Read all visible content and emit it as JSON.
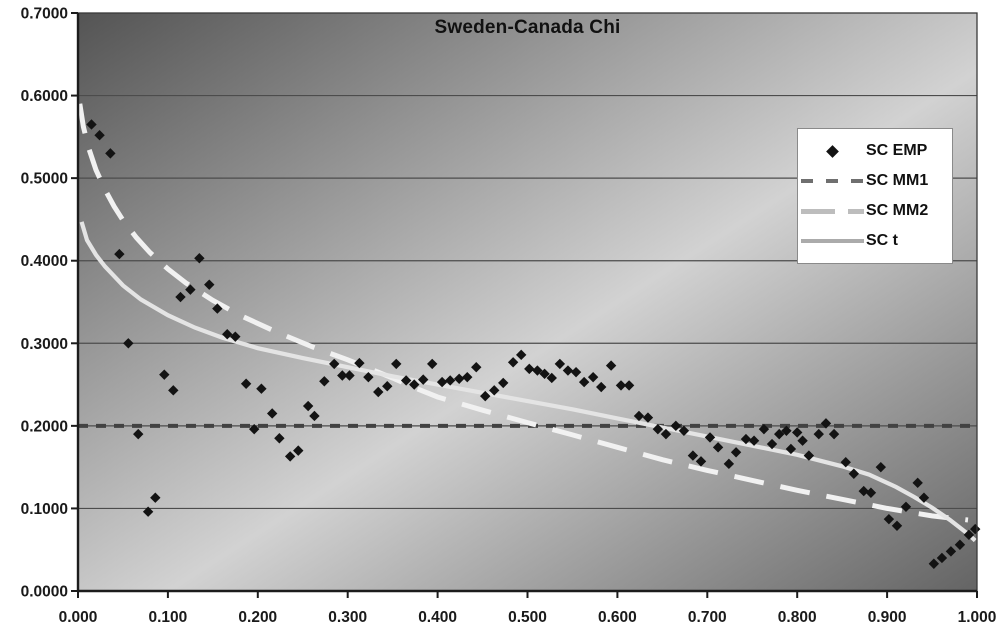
{
  "page": {
    "background": "#ffffff"
  },
  "colors": {
    "emp": "#131313",
    "mm1": "#424242",
    "mm2": "#f1f1f1",
    "t": "#e4e4e4",
    "legend_mm1": "#6f6f6f",
    "legend_mm2": "#bdbdbd",
    "legend_t": "#ababab",
    "grid": "#4c4c4c",
    "axis": "#1c1c1c",
    "border": "#3a3a3a",
    "text": "#1a1a1a",
    "plot_corner_dark": "#545454",
    "plot_mid_light": "#d2d2d2",
    "plot_corner_dark2": "#646464",
    "legend_bg": "#ffffff",
    "legend_border": "#8a8a8a"
  },
  "chart_data": {
    "type": "scatter",
    "title": "Sweden-Canada Chi",
    "xlabel": "",
    "ylabel": "",
    "xlim": [
      0,
      1
    ],
    "ylim": [
      0,
      0.7
    ],
    "x_ticks": [
      "0.000",
      "0.100",
      "0.200",
      "0.300",
      "0.400",
      "0.500",
      "0.600",
      "0.700",
      "0.800",
      "0.900",
      "1.000"
    ],
    "y_ticks": [
      "0.0000",
      "0.1000",
      "0.2000",
      "0.3000",
      "0.4000",
      "0.5000",
      "0.6000",
      "0.7000"
    ],
    "grid": true,
    "legend_position": "upper-right",
    "series": [
      {
        "name": "SC EMP",
        "type": "scatter",
        "marker": "diamond",
        "color_key": "emp",
        "points": [
          [
            0.015,
            0.565
          ],
          [
            0.024,
            0.552
          ],
          [
            0.036,
            0.53
          ],
          [
            0.046,
            0.408
          ],
          [
            0.056,
            0.3
          ],
          [
            0.067,
            0.19
          ],
          [
            0.078,
            0.096
          ],
          [
            0.086,
            0.113
          ],
          [
            0.096,
            0.262
          ],
          [
            0.106,
            0.243
          ],
          [
            0.114,
            0.356
          ],
          [
            0.125,
            0.365
          ],
          [
            0.135,
            0.403
          ],
          [
            0.146,
            0.371
          ],
          [
            0.155,
            0.342
          ],
          [
            0.166,
            0.311
          ],
          [
            0.175,
            0.308
          ],
          [
            0.187,
            0.251
          ],
          [
            0.196,
            0.196
          ],
          [
            0.204,
            0.245
          ],
          [
            0.216,
            0.215
          ],
          [
            0.224,
            0.185
          ],
          [
            0.236,
            0.163
          ],
          [
            0.245,
            0.17
          ],
          [
            0.256,
            0.224
          ],
          [
            0.263,
            0.212
          ],
          [
            0.274,
            0.254
          ],
          [
            0.285,
            0.275
          ],
          [
            0.294,
            0.261
          ],
          [
            0.302,
            0.261
          ],
          [
            0.313,
            0.276
          ],
          [
            0.323,
            0.259
          ],
          [
            0.334,
            0.241
          ],
          [
            0.344,
            0.248
          ],
          [
            0.354,
            0.275
          ],
          [
            0.365,
            0.255
          ],
          [
            0.374,
            0.25
          ],
          [
            0.384,
            0.256
          ],
          [
            0.394,
            0.275
          ],
          [
            0.405,
            0.253
          ],
          [
            0.414,
            0.255
          ],
          [
            0.424,
            0.257
          ],
          [
            0.433,
            0.259
          ],
          [
            0.443,
            0.271
          ],
          [
            0.453,
            0.236
          ],
          [
            0.463,
            0.243
          ],
          [
            0.473,
            0.252
          ],
          [
            0.484,
            0.277
          ],
          [
            0.493,
            0.286
          ],
          [
            0.502,
            0.269
          ],
          [
            0.511,
            0.267
          ],
          [
            0.519,
            0.263
          ],
          [
            0.527,
            0.258
          ],
          [
            0.536,
            0.275
          ],
          [
            0.545,
            0.267
          ],
          [
            0.554,
            0.265
          ],
          [
            0.563,
            0.253
          ],
          [
            0.573,
            0.259
          ],
          [
            0.582,
            0.247
          ],
          [
            0.593,
            0.273
          ],
          [
            0.604,
            0.249
          ],
          [
            0.613,
            0.249
          ],
          [
            0.624,
            0.212
          ],
          [
            0.634,
            0.21
          ],
          [
            0.645,
            0.196
          ],
          [
            0.654,
            0.19
          ],
          [
            0.665,
            0.2
          ],
          [
            0.674,
            0.194
          ],
          [
            0.684,
            0.164
          ],
          [
            0.693,
            0.157
          ],
          [
            0.703,
            0.186
          ],
          [
            0.712,
            0.174
          ],
          [
            0.724,
            0.154
          ],
          [
            0.732,
            0.168
          ],
          [
            0.743,
            0.184
          ],
          [
            0.752,
            0.182
          ],
          [
            0.763,
            0.196
          ],
          [
            0.772,
            0.178
          ],
          [
            0.78,
            0.19
          ],
          [
            0.788,
            0.194
          ],
          [
            0.793,
            0.172
          ],
          [
            0.8,
            0.192
          ],
          [
            0.806,
            0.182
          ],
          [
            0.813,
            0.164
          ],
          [
            0.824,
            0.19
          ],
          [
            0.832,
            0.203
          ],
          [
            0.841,
            0.19
          ],
          [
            0.854,
            0.156
          ],
          [
            0.863,
            0.142
          ],
          [
            0.874,
            0.121
          ],
          [
            0.882,
            0.119
          ],
          [
            0.893,
            0.15
          ],
          [
            0.902,
            0.087
          ],
          [
            0.911,
            0.079
          ],
          [
            0.921,
            0.102
          ],
          [
            0.934,
            0.131
          ],
          [
            0.941,
            0.113
          ],
          [
            0.952,
            0.033
          ],
          [
            0.961,
            0.04
          ],
          [
            0.971,
            0.048
          ],
          [
            0.981,
            0.056
          ],
          [
            0.991,
            0.068
          ],
          [
            0.998,
            0.075
          ]
        ]
      },
      {
        "name": "SC MM1",
        "type": "line",
        "style": "dash-short",
        "color_key": "mm1",
        "points": [
          [
            0,
            0.2
          ],
          [
            1,
            0.2
          ]
        ]
      },
      {
        "name": "SC MM2",
        "type": "line",
        "style": "dash-long",
        "color_key": "mm2",
        "points": [
          [
            0.002,
            0.59
          ],
          [
            0.006,
            0.562
          ],
          [
            0.012,
            0.536
          ],
          [
            0.02,
            0.51
          ],
          [
            0.03,
            0.486
          ],
          [
            0.04,
            0.466
          ],
          [
            0.05,
            0.449
          ],
          [
            0.065,
            0.428
          ],
          [
            0.08,
            0.41
          ],
          [
            0.1,
            0.39
          ],
          [
            0.12,
            0.373
          ],
          [
            0.15,
            0.352
          ],
          [
            0.18,
            0.334
          ],
          [
            0.22,
            0.314
          ],
          [
            0.26,
            0.296
          ],
          [
            0.3,
            0.28
          ],
          [
            0.35,
            0.258
          ],
          [
            0.375,
            0.246
          ],
          [
            0.4,
            0.235
          ],
          [
            0.45,
            0.219
          ],
          [
            0.5,
            0.204
          ],
          [
            0.55,
            0.189
          ],
          [
            0.6,
            0.174
          ],
          [
            0.65,
            0.159
          ],
          [
            0.7,
            0.146
          ],
          [
            0.75,
            0.134
          ],
          [
            0.8,
            0.122
          ],
          [
            0.85,
            0.111
          ],
          [
            0.9,
            0.1
          ],
          [
            0.95,
            0.091
          ],
          [
            0.99,
            0.086
          ]
        ]
      },
      {
        "name": "SC t",
        "type": "line",
        "style": "solid",
        "color_key": "t",
        "points": [
          [
            0.004,
            0.447
          ],
          [
            0.01,
            0.425
          ],
          [
            0.02,
            0.407
          ],
          [
            0.03,
            0.393
          ],
          [
            0.05,
            0.37
          ],
          [
            0.07,
            0.353
          ],
          [
            0.1,
            0.334
          ],
          [
            0.13,
            0.319
          ],
          [
            0.16,
            0.307
          ],
          [
            0.2,
            0.294
          ],
          [
            0.25,
            0.282
          ],
          [
            0.3,
            0.271
          ],
          [
            0.35,
            0.26
          ],
          [
            0.4,
            0.25
          ],
          [
            0.45,
            0.24
          ],
          [
            0.5,
            0.23
          ],
          [
            0.55,
            0.22
          ],
          [
            0.6,
            0.209
          ],
          [
            0.65,
            0.198
          ],
          [
            0.7,
            0.187
          ],
          [
            0.75,
            0.176
          ],
          [
            0.8,
            0.165
          ],
          [
            0.85,
            0.151
          ],
          [
            0.88,
            0.141
          ],
          [
            0.91,
            0.126
          ],
          [
            0.93,
            0.114
          ],
          [
            0.95,
            0.101
          ],
          [
            0.97,
            0.086
          ],
          [
            0.99,
            0.069
          ],
          [
            0.998,
            0.061
          ]
        ]
      }
    ]
  }
}
